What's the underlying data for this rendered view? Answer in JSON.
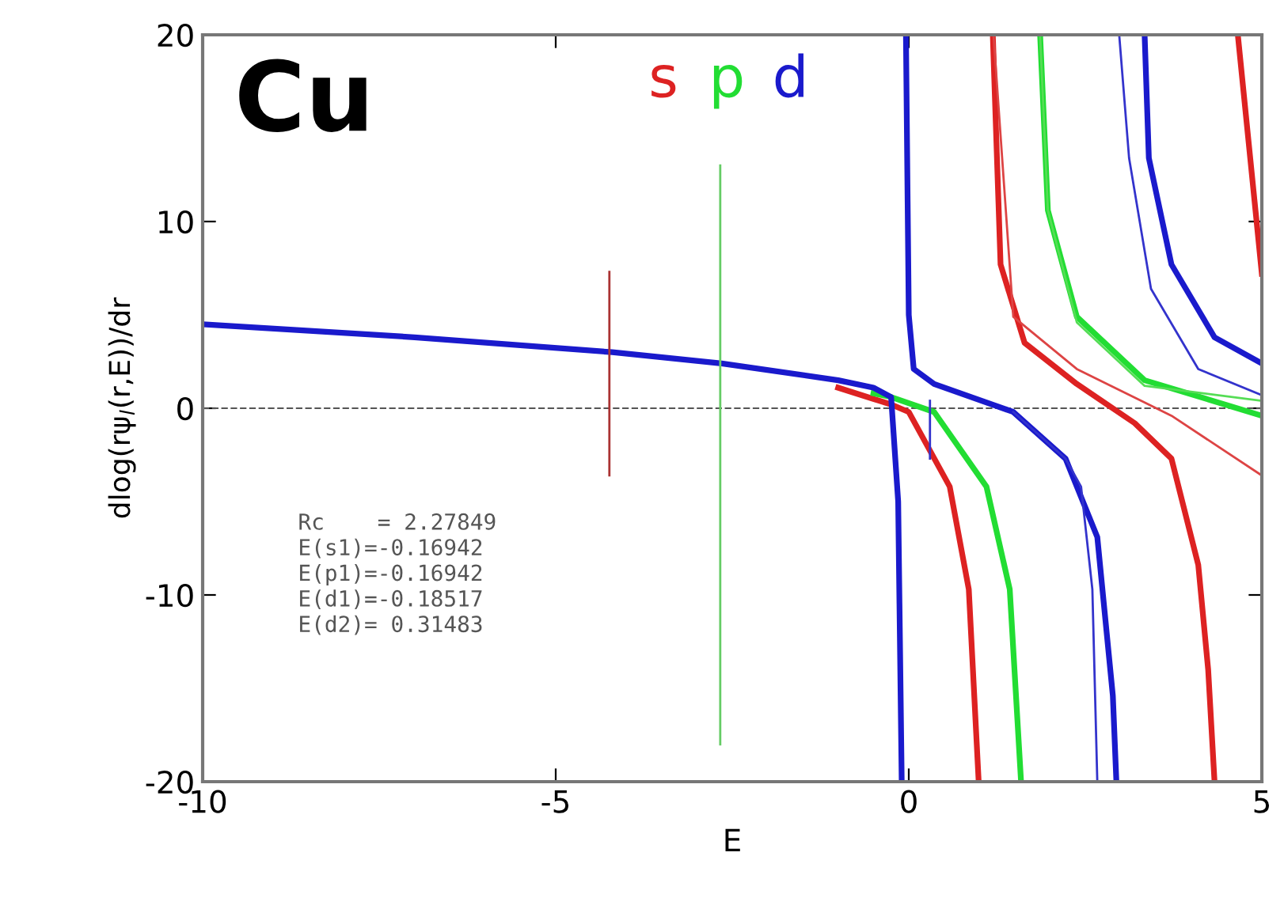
{
  "chart_data": {
    "type": "line",
    "xlabel": "E",
    "ylabel": "dlog(rψ$_{l}$(r,E))/dr",
    "xlim": [
      -10,
      5
    ],
    "ylim": [
      -20,
      20
    ],
    "xticks": [
      {
        "value": -10,
        "label": "-10"
      },
      {
        "value": -5,
        "label": "-5"
      },
      0,
      5
    ],
    "yticks": [
      {
        "value": -20,
        "label": "-20"
      },
      {
        "value": -10,
        "label": "-10"
      },
      0,
      10,
      20
    ],
    "grid": false,
    "legend": "top",
    "marker": "none",
    "line_style": "solid",
    "ref_lines": [
      {
        "axis": "y",
        "value": 0,
        "line_style": "dashed",
        "color": "#555555"
      }
    ],
    "annotations": [
      "Cu",
      "Rc    = 2.27849\nE(s1)=-0.16942\nE(p1)=-0.16942\nE(d1)=-0.18517\nE(d2)= 0.31483"
    ],
    "series": [
      {
        "name": "s",
        "color": "#dd2222",
        "x": [
          -1,
          -0.5,
          -0.25,
          0,
          0.58,
          0.85,
          0.99,
          null,
          1.19,
          1.3,
          1.64,
          2.38,
          3.2,
          3.72,
          4.1,
          4.24,
          4.33,
          null,
          4.66,
          4.91,
          5
        ],
        "values": [
          1.1,
          0.5,
          0.2,
          -0.2,
          -4.2,
          -9.7,
          -20,
          null,
          20,
          7.7,
          3.5,
          1.3,
          -0.8,
          -2.7,
          -8.4,
          -14,
          -20,
          null,
          20,
          10.6,
          7.2
        ]
      },
      {
        "name": "p",
        "color": "#22dd33",
        "x": [
          -0.5,
          -0.25,
          0.36,
          1.1,
          1.43,
          1.59,
          null,
          1.86,
          1.97,
          2.38,
          3.34,
          5
        ],
        "values": [
          0.8,
          0.6,
          -0.2,
          -4.2,
          -9.7,
          -20,
          null,
          20,
          10.6,
          4.9,
          1.5,
          -0.4
        ]
      },
      {
        "name": "d",
        "color": "#1a1acc",
        "x": [
          -10,
          -7,
          -4.2,
          -2.65,
          -1,
          -0.5,
          -0.25,
          -0.15,
          -0.1,
          null,
          -0.04,
          0.0,
          0.07,
          0.36,
          1.48,
          2.22,
          2.67,
          2.89,
          2.94,
          null,
          3.34,
          3.4,
          3.72,
          4.33,
          5
        ],
        "values": [
          4.5,
          3.8,
          3.0,
          2.4,
          1.5,
          1.1,
          0.6,
          -5,
          -20,
          null,
          20,
          5,
          2.1,
          1.3,
          -0.2,
          -2.7,
          -6.9,
          -15.4,
          -20,
          null,
          20,
          13.4,
          7.7,
          3.8,
          2.4
        ]
      },
      {
        "color": "#dd4444",
        "x": [
          1.2,
          1.48,
          2.38,
          3.72,
          5
        ],
        "values": [
          20,
          4.9,
          2.1,
          -0.4,
          -3.6
        ]
      },
      {
        "color": "#55dd55",
        "x": [
          1.86,
          1.97,
          2.38,
          3.34,
          5
        ],
        "values": [
          20,
          10.6,
          4.6,
          1.2,
          0.4
        ]
      },
      {
        "color": "#3333cc",
        "x": [
          1.48,
          2.22,
          2.44,
          2.6,
          2.67,
          null,
          2.98,
          3.12,
          3.43,
          4.1,
          5
        ],
        "values": [
          -0.2,
          -2.7,
          -4.2,
          -9.7,
          -20,
          null,
          20,
          13.4,
          6.4,
          2.1,
          0.7
        ]
      },
      {
        "color": "#aa3333",
        "x": [
          -4.24,
          -4.24
        ],
        "values": [
          -3.6,
          7.3
        ]
      },
      {
        "color": "#66cc66",
        "x": [
          -2.67,
          -2.67
        ],
        "values": [
          -18,
          13
        ]
      },
      {
        "color": "#3333cc",
        "x": [
          0.3,
          0.3
        ],
        "values": [
          0.4,
          -2.7
        ]
      }
    ]
  }
}
